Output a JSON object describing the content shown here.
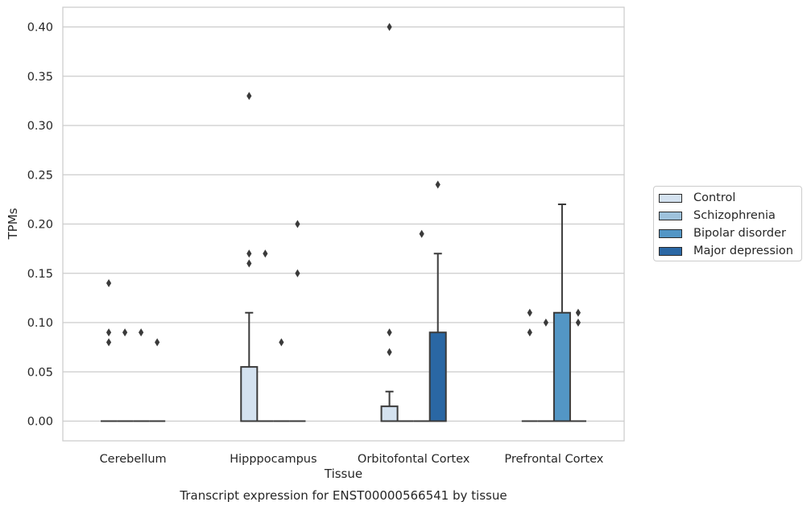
{
  "chart_data": {
    "type": "box",
    "title": "",
    "caption": "Transcript expression for ENST00000566541 by tissue",
    "xlabel": "Tissue",
    "ylabel": "TPMs",
    "ylim": [
      -0.02,
      0.42
    ],
    "yticks": [
      "0.00",
      "0.05",
      "0.10",
      "0.15",
      "0.20",
      "0.25",
      "0.30",
      "0.35",
      "0.40"
    ],
    "grid": "horizontal",
    "legend_position": "right",
    "categories": [
      "Cerebellum",
      "Hipppocampus",
      "Orbitofontal Cortex",
      "Prefrontal Cortex"
    ],
    "series": [
      {
        "name": "Control",
        "color": "#d4e2f0",
        "boxes": [
          {
            "q1": 0,
            "median": 0,
            "q3": 0,
            "whisker_low": 0,
            "whisker_high": 0,
            "outliers": [
              0.08,
              0.09,
              0.14
            ]
          },
          {
            "q1": 0,
            "median": 0,
            "q3": 0.055,
            "whisker_low": 0,
            "whisker_high": 0.11,
            "outliers": [
              0.16,
              0.17,
              0.33
            ]
          },
          {
            "q1": 0,
            "median": 0,
            "q3": 0.015,
            "whisker_low": 0,
            "whisker_high": 0.03,
            "outliers": [
              0.07,
              0.09,
              0.4
            ]
          },
          {
            "q1": 0,
            "median": 0,
            "q3": 0,
            "whisker_low": 0,
            "whisker_high": 0,
            "outliers": [
              0.09,
              0.11
            ]
          }
        ]
      },
      {
        "name": "Schizophrenia",
        "color": "#9ec2dc",
        "boxes": [
          {
            "q1": 0,
            "median": 0,
            "q3": 0,
            "whisker_low": 0,
            "whisker_high": 0,
            "outliers": [
              0.09
            ]
          },
          {
            "q1": 0,
            "median": 0,
            "q3": 0,
            "whisker_low": 0,
            "whisker_high": 0,
            "outliers": [
              0.17
            ]
          },
          {
            "q1": 0,
            "median": 0,
            "q3": 0,
            "whisker_low": 0,
            "whisker_high": 0,
            "outliers": []
          },
          {
            "q1": 0,
            "median": 0,
            "q3": 0,
            "whisker_low": 0,
            "whisker_high": 0,
            "outliers": [
              0.1
            ]
          }
        ]
      },
      {
        "name": "Bipolar disorder",
        "color": "#5396c5",
        "boxes": [
          {
            "q1": 0,
            "median": 0,
            "q3": 0,
            "whisker_low": 0,
            "whisker_high": 0,
            "outliers": [
              0.09
            ]
          },
          {
            "q1": 0,
            "median": 0,
            "q3": 0,
            "whisker_low": 0,
            "whisker_high": 0,
            "outliers": [
              0.08
            ]
          },
          {
            "q1": 0,
            "median": 0,
            "q3": 0,
            "whisker_low": 0,
            "whisker_high": 0,
            "outliers": [
              0.19
            ]
          },
          {
            "q1": 0,
            "median": 0,
            "q3": 0.11,
            "whisker_low": 0,
            "whisker_high": 0.22,
            "outliers": []
          }
        ]
      },
      {
        "name": "Major depression",
        "color": "#2a67a4",
        "boxes": [
          {
            "q1": 0,
            "median": 0,
            "q3": 0,
            "whisker_low": 0,
            "whisker_high": 0,
            "outliers": [
              0.08
            ]
          },
          {
            "q1": 0,
            "median": 0,
            "q3": 0,
            "whisker_low": 0,
            "whisker_high": 0,
            "outliers": [
              0.15,
              0.2
            ]
          },
          {
            "q1": 0,
            "median": 0,
            "q3": 0.09,
            "whisker_low": 0,
            "whisker_high": 0.17,
            "outliers": [
              0.24
            ]
          },
          {
            "q1": 0,
            "median": 0,
            "q3": 0,
            "whisker_low": 0,
            "whisker_high": 0,
            "outliers": [
              0.1,
              0.11
            ]
          }
        ]
      }
    ]
  }
}
